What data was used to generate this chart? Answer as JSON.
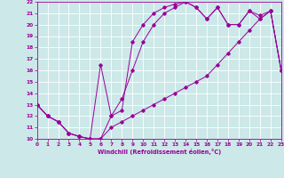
{
  "xlabel": "Windchill (Refroidissement éolien,°C)",
  "bg_color": "#cce8e8",
  "grid_color": "#aacccc",
  "line_color": "#990099",
  "xlim": [
    0,
    23
  ],
  "ylim": [
    10,
    22
  ],
  "xticks": [
    0,
    1,
    2,
    3,
    4,
    5,
    6,
    7,
    8,
    9,
    10,
    11,
    12,
    13,
    14,
    15,
    16,
    17,
    18,
    19,
    20,
    21,
    22,
    23
  ],
  "yticks": [
    10,
    11,
    12,
    13,
    14,
    15,
    16,
    17,
    18,
    19,
    20,
    21,
    22
  ],
  "line1_x": [
    0,
    1,
    2,
    3,
    4,
    5,
    6,
    7,
    8,
    9,
    10,
    11,
    12,
    13,
    14,
    15,
    16,
    17,
    18,
    19,
    20,
    21,
    22,
    23
  ],
  "line1_y": [
    13,
    12,
    11.5,
    10.5,
    10.2,
    10,
    10,
    12,
    13.5,
    16,
    18.5,
    20,
    21,
    21.5,
    22,
    21.5,
    20.5,
    21.5,
    20,
    20,
    21.2,
    20.5,
    21.2,
    16
  ],
  "line2_x": [
    0,
    1,
    2,
    3,
    4,
    5,
    6,
    7,
    8,
    9,
    10,
    11,
    12,
    13,
    14,
    15,
    16,
    17,
    18,
    19,
    20,
    21,
    22,
    23
  ],
  "line2_y": [
    13,
    12,
    11.5,
    10.5,
    10.2,
    10,
    10,
    11,
    11.5,
    12,
    12.5,
    13,
    13.5,
    14,
    14.5,
    15,
    15.5,
    16.5,
    17.5,
    18.5,
    19.5,
    20.5,
    21.2,
    16
  ],
  "line3_x": [
    0,
    1,
    2,
    3,
    4,
    5,
    6,
    7,
    8,
    9,
    10,
    11,
    12,
    13,
    14,
    15,
    16,
    17,
    18,
    19,
    20,
    21,
    22,
    23
  ],
  "line3_y": [
    13,
    12,
    11.5,
    10.5,
    10.2,
    10,
    16.5,
    12,
    12.5,
    18.5,
    20,
    21,
    21.5,
    21.8,
    22,
    21.5,
    20.5,
    21.5,
    20,
    20,
    21.2,
    20.8,
    21.2,
    16
  ]
}
